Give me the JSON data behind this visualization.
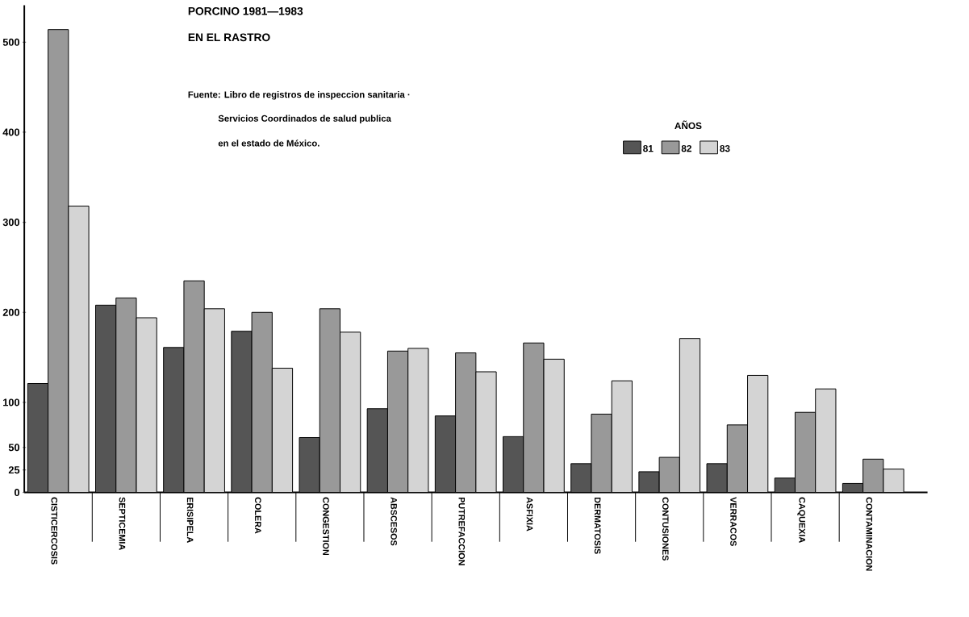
{
  "chart_data": {
    "type": "bar",
    "title": "PORCINO 1981—1983",
    "subtitle": "EN EL RASTRO",
    "annotations": [
      "Fuente: Libro de registros de inspeccion sanitaria ·",
      "Servicios Coordinados de salud publica",
      "en el estado de México."
    ],
    "categories": [
      "CISTICERCOSIS",
      "SEPTICEMIA",
      "ERISIPELA",
      "COLERA",
      "CONGESTION",
      "ABSCESOS",
      "PUTREFACCION",
      "ASFIXIA",
      "DERMATOSIS",
      "CONTUSIONES",
      "VERRACOS",
      "CAQUEXIA",
      "CONTAMINACION"
    ],
    "series": [
      {
        "name": "81",
        "color": "#555555",
        "values": [
          121,
          208,
          161,
          179,
          61,
          93,
          85,
          62,
          32,
          23,
          32,
          16,
          10
        ]
      },
      {
        "name": "82",
        "color": "#999999",
        "values": [
          514,
          216,
          235,
          200,
          204,
          157,
          155,
          166,
          87,
          39,
          75,
          89,
          37
        ]
      },
      {
        "name": "83",
        "color": "#d4d4d4",
        "values": [
          318,
          194,
          204,
          138,
          178,
          160,
          134,
          148,
          124,
          171,
          130,
          115,
          26
        ]
      }
    ],
    "legend_title": "AÑOS",
    "legend": "top right",
    "ylim": [
      0,
      541
    ],
    "yticks": [
      0,
      25,
      50,
      100,
      200,
      300,
      400,
      500
    ]
  }
}
